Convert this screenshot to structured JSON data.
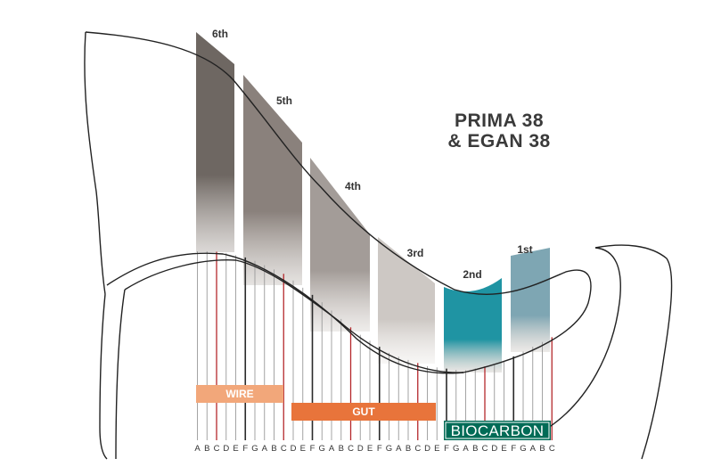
{
  "title": {
    "line1": "PRIMA 38",
    "line2": "& EGAN 38"
  },
  "octaves": [
    {
      "label": "6th",
      "color_top": "#6e6762",
      "color_bottom": "#9a918b"
    },
    {
      "label": "5th",
      "color_top": "#8a817c",
      "color_bottom": "#b6afa9"
    },
    {
      "label": "4th",
      "color_top": "#a39c98",
      "color_bottom": "#cfc9c4"
    },
    {
      "label": "3rd",
      "color_top": "#cdc8c4",
      "color_bottom": "#e9e6e3"
    },
    {
      "label": "2nd",
      "color_top": "#1f94a3",
      "color_bottom": "#c5bdb7"
    },
    {
      "label": "1st",
      "color_top": "#7ea6b3",
      "color_bottom": "#c9c3bd"
    }
  ],
  "string_types": [
    {
      "label": "WIRE",
      "color": "#f2a77a"
    },
    {
      "label": "GUT",
      "color": "#e8743b"
    },
    {
      "label": "BIOCARBON",
      "color": "#006b56"
    }
  ],
  "notes": [
    "A",
    "B",
    "C",
    "D",
    "E",
    "F",
    "G",
    "A",
    "B",
    "C",
    "D",
    "E",
    "F",
    "G",
    "A",
    "B",
    "C",
    "D",
    "E",
    "F",
    "G",
    "A",
    "B",
    "C",
    "D",
    "E",
    "F",
    "G",
    "A",
    "B",
    "C",
    "D",
    "E",
    "F",
    "G",
    "A",
    "B",
    "C"
  ],
  "colors": {
    "c_string": "#b5282c",
    "f_string": "#2a2a2a",
    "plain_string": "#9a9a9a",
    "outline": "#222222"
  }
}
